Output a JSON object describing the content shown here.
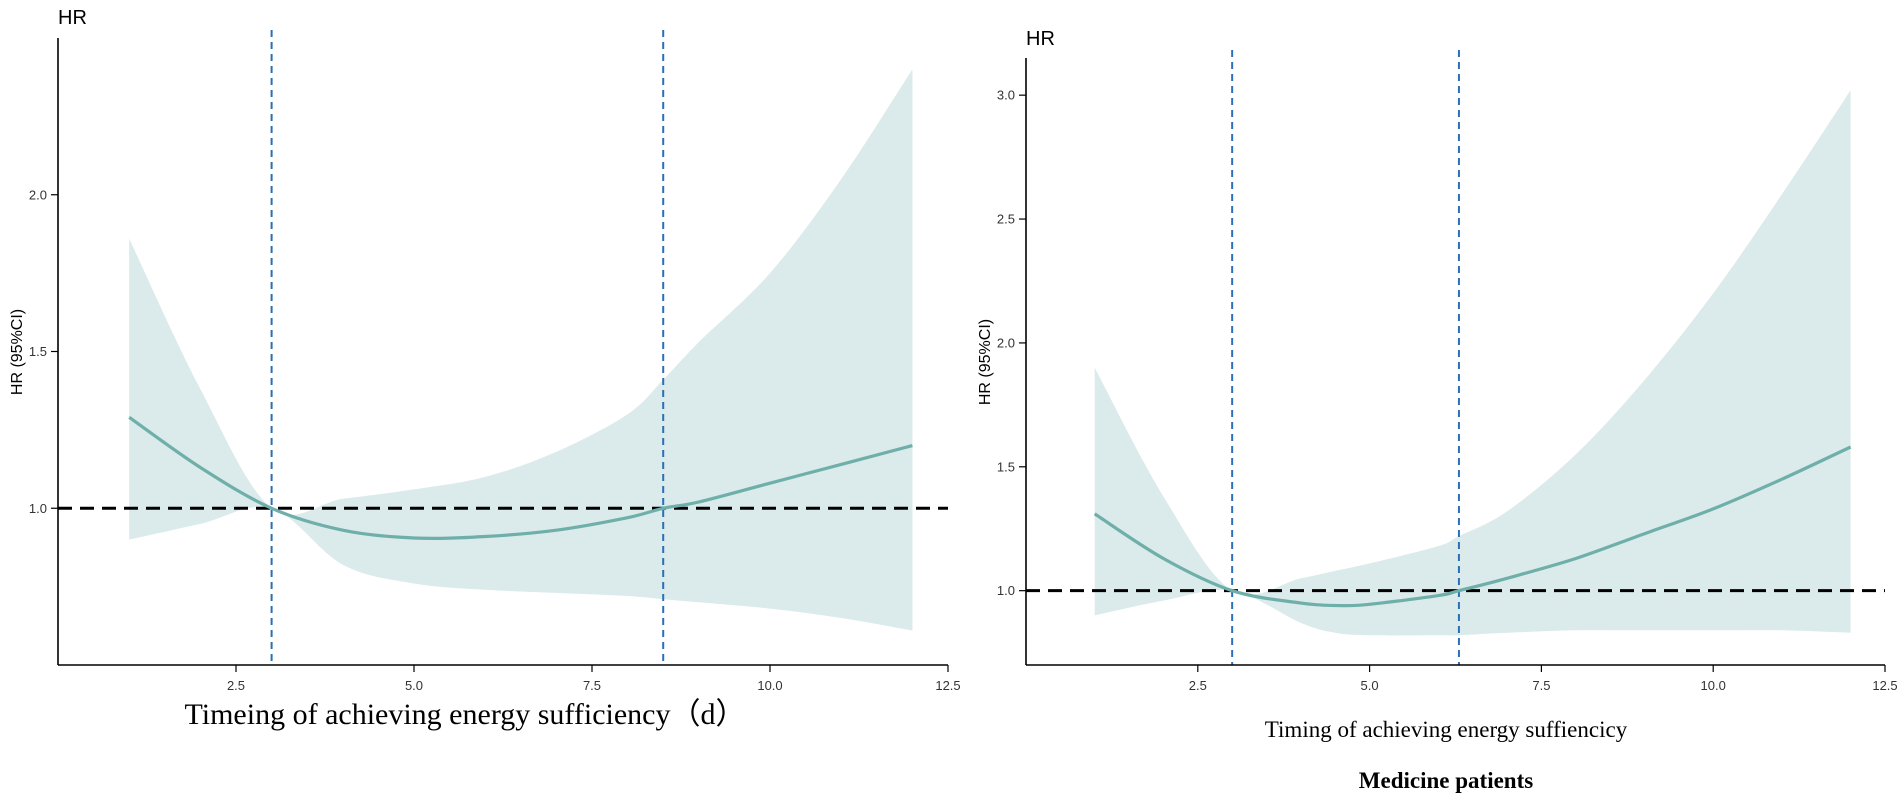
{
  "colors": {
    "curve": "#6fafaa",
    "ci_band": "#dbeaea",
    "cutoff": "#2c6fb7",
    "reference": "#000000"
  },
  "chart_data": [
    {
      "type": "line",
      "title": "",
      "ylabel_top": "HR",
      "ylabel": "HR (95%CI)",
      "xlabel": "Timeing of achieving energy sufficiency（d）",
      "xlim": [
        0.0,
        12.5
      ],
      "ylim": [
        0.5,
        2.5
      ],
      "xticks": [
        2.5,
        5.0,
        7.5,
        10.0,
        12.5
      ],
      "xtick_labels": [
        "2.5",
        "5.0",
        "7.5",
        "10.0",
        "12.5"
      ],
      "yticks": [
        1.0,
        1.5,
        2.0
      ],
      "ytick_labels": [
        "1.0",
        "1.5",
        "2.0"
      ],
      "reference_hr": 1.0,
      "cutoffs": [
        3.0,
        8.5
      ],
      "series": [
        {
          "name": "HR",
          "x": [
            1,
            2,
            3,
            4,
            5,
            6,
            7,
            8,
            8.5,
            9,
            10,
            11,
            12
          ],
          "values": [
            1.29,
            1.13,
            1.0,
            0.93,
            0.905,
            0.91,
            0.93,
            0.97,
            1.0,
            1.02,
            1.08,
            1.14,
            1.2
          ]
        },
        {
          "name": "lower 95% CI",
          "x": [
            1,
            2,
            3,
            4,
            5,
            6,
            7,
            8,
            8.5,
            9,
            10,
            11,
            12
          ],
          "values": [
            0.9,
            0.95,
            1.0,
            0.82,
            0.76,
            0.74,
            0.73,
            0.72,
            0.71,
            0.7,
            0.68,
            0.65,
            0.61
          ]
        },
        {
          "name": "upper 95% CI",
          "x": [
            1,
            2,
            3,
            4,
            5,
            6,
            7,
            8,
            8.5,
            9,
            10,
            11,
            12
          ],
          "values": [
            1.86,
            1.38,
            1.0,
            1.03,
            1.06,
            1.1,
            1.18,
            1.3,
            1.41,
            1.53,
            1.75,
            2.05,
            2.4
          ]
        }
      ]
    },
    {
      "type": "line",
      "title": "Medicine patients",
      "ylabel_top": "HR",
      "ylabel": "HR (95%CI)",
      "xlabel": "Timing of achieving energy suffiencicy",
      "xlim": [
        0.0,
        12.5
      ],
      "ylim": [
        0.7,
        3.15
      ],
      "xticks": [
        2.5,
        5.0,
        7.5,
        10.0,
        12.5
      ],
      "xtick_labels": [
        "2.5",
        "5.0",
        "7.5",
        "10.0",
        "12.5"
      ],
      "yticks": [
        1.0,
        1.5,
        2.0,
        2.5,
        3.0
      ],
      "ytick_labels": [
        "1.0",
        "1.5",
        "2.0",
        "2.5",
        "3.0"
      ],
      "reference_hr": 1.0,
      "cutoffs": [
        3.0,
        6.3
      ],
      "series": [
        {
          "name": "HR",
          "x": [
            1,
            2,
            3,
            4,
            4.5,
            5,
            6,
            6.3,
            7,
            8,
            9,
            10,
            11,
            12
          ],
          "values": [
            1.31,
            1.13,
            1.0,
            0.95,
            0.94,
            0.945,
            0.98,
            1.0,
            1.05,
            1.13,
            1.23,
            1.33,
            1.45,
            1.58
          ]
        },
        {
          "name": "lower 95% CI",
          "x": [
            1,
            2,
            3,
            4,
            4.5,
            5,
            6,
            6.3,
            7,
            8,
            9,
            10,
            11,
            12
          ],
          "values": [
            0.9,
            0.96,
            1.0,
            0.87,
            0.83,
            0.82,
            0.82,
            0.82,
            0.83,
            0.84,
            0.84,
            0.84,
            0.84,
            0.83
          ]
        },
        {
          "name": "upper 95% CI",
          "x": [
            1,
            2,
            3,
            4,
            4.5,
            5,
            6,
            6.3,
            7,
            8,
            9,
            10,
            11,
            12
          ],
          "values": [
            1.9,
            1.38,
            1.0,
            1.05,
            1.08,
            1.11,
            1.18,
            1.22,
            1.32,
            1.55,
            1.85,
            2.2,
            2.6,
            3.02
          ]
        }
      ]
    }
  ]
}
